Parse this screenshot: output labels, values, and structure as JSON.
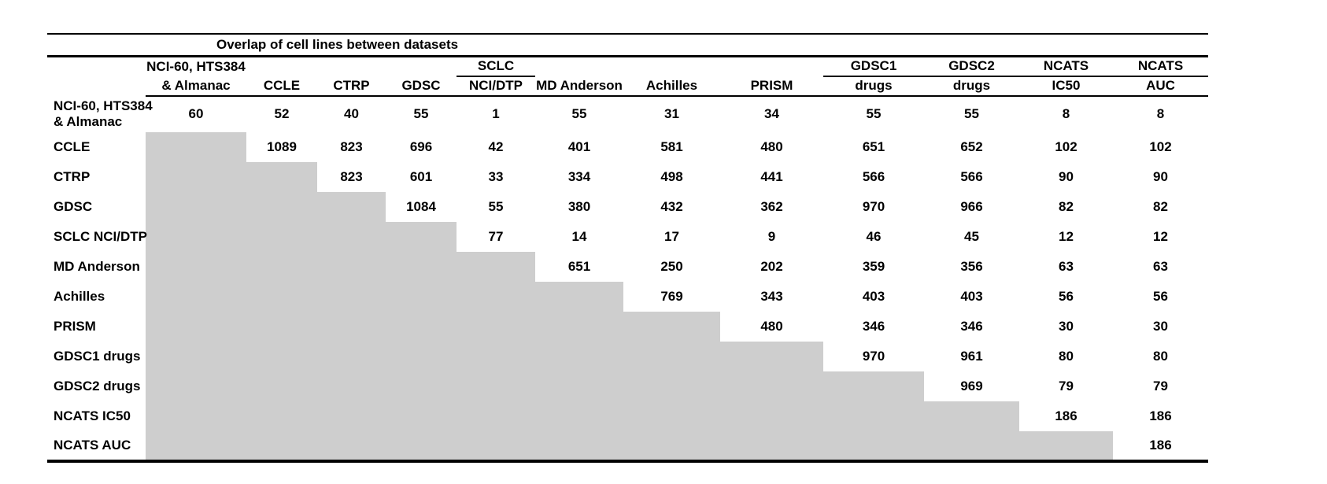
{
  "table": {
    "title": "Overlap of cell lines between datasets",
    "header": {
      "groups": [
        {
          "col": 1,
          "label": "NCI-60, HTS384",
          "underline": false
        },
        {
          "col": 5,
          "label": "SCLC",
          "underline": true
        },
        {
          "col": 9,
          "label": "GDSC1",
          "underline": true
        },
        {
          "col": 10,
          "label": "GDSC2",
          "underline": true
        },
        {
          "col": 11,
          "label": "NCATS",
          "underline": true
        },
        {
          "col": 12,
          "label": "NCATS",
          "underline": true
        }
      ],
      "sub_labels": [
        "& Almanac",
        "CCLE",
        "CTRP",
        "GDSC",
        "NCI/DTP",
        "MD Anderson",
        "Achilles",
        "PRISM",
        "drugs",
        "drugs",
        "IC50",
        "AUC"
      ]
    },
    "rows": [
      {
        "label": "NCI-60, HTS384",
        "label2": "& Almanac",
        "cells": [
          60,
          52,
          40,
          55,
          1,
          55,
          31,
          34,
          55,
          55,
          8,
          8
        ]
      },
      {
        "label": "CCLE",
        "cells": [
          null,
          1089,
          823,
          696,
          42,
          401,
          581,
          480,
          651,
          652,
          102,
          102
        ]
      },
      {
        "label": "CTRP",
        "cells": [
          null,
          null,
          823,
          601,
          33,
          334,
          498,
          441,
          566,
          566,
          90,
          90
        ]
      },
      {
        "label": "GDSC",
        "cells": [
          null,
          null,
          null,
          1084,
          55,
          380,
          432,
          362,
          970,
          966,
          82,
          82
        ]
      },
      {
        "label": "SCLC NCI/DTP",
        "cells": [
          null,
          null,
          null,
          null,
          77,
          14,
          17,
          9,
          46,
          45,
          12,
          12
        ]
      },
      {
        "label": "MD Anderson",
        "cells": [
          null,
          null,
          null,
          null,
          null,
          651,
          250,
          202,
          359,
          356,
          63,
          63
        ]
      },
      {
        "label": "Achilles",
        "cells": [
          null,
          null,
          null,
          null,
          null,
          null,
          769,
          343,
          403,
          403,
          56,
          56
        ]
      },
      {
        "label": "PRISM",
        "cells": [
          null,
          null,
          null,
          null,
          null,
          null,
          null,
          480,
          346,
          346,
          30,
          30
        ]
      },
      {
        "label": "GDSC1 drugs",
        "cells": [
          null,
          null,
          null,
          null,
          null,
          null,
          null,
          null,
          970,
          961,
          80,
          80
        ]
      },
      {
        "label": "GDSC2 drugs",
        "cells": [
          null,
          null,
          null,
          null,
          null,
          null,
          null,
          null,
          null,
          969,
          79,
          79
        ]
      },
      {
        "label": "NCATS IC50",
        "cells": [
          null,
          null,
          null,
          null,
          null,
          null,
          null,
          null,
          null,
          null,
          186,
          186
        ]
      },
      {
        "label": "NCATS AUC",
        "cells": [
          null,
          null,
          null,
          null,
          null,
          null,
          null,
          null,
          null,
          null,
          null,
          186
        ]
      }
    ],
    "colors": {
      "shaded_cell": "#cecece",
      "rule": "#000000",
      "text": "#000000",
      "background": "#ffffff"
    }
  }
}
